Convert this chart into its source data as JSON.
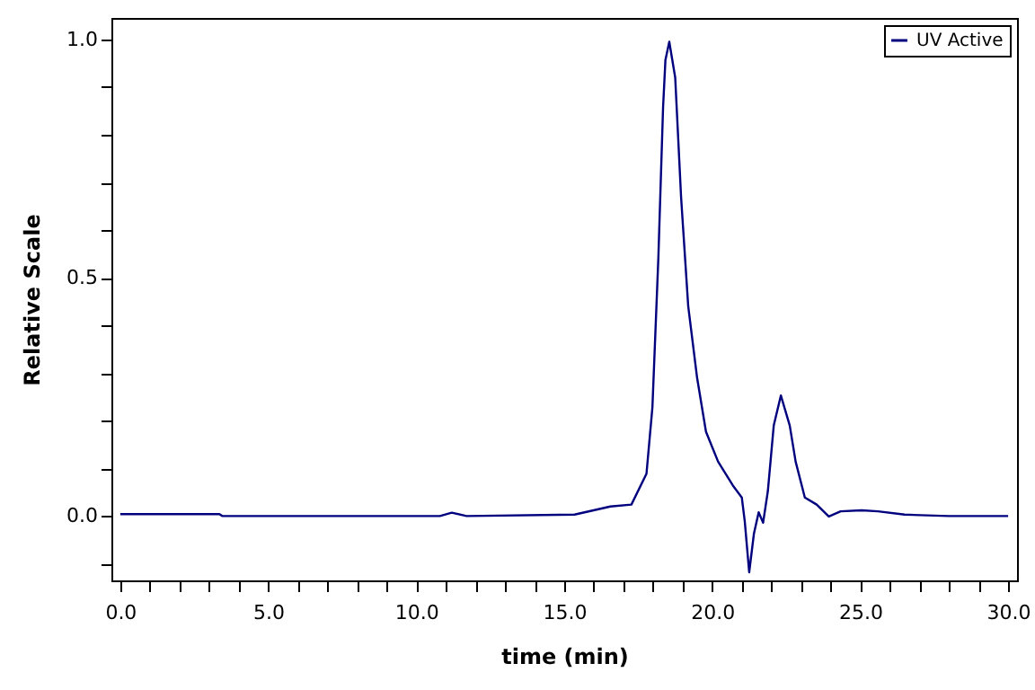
{
  "chart_data": {
    "type": "line",
    "xlabel": "time (min)",
    "ylabel": "Relative Scale",
    "legend": "top right",
    "xlim": [
      -0.3,
      30.3
    ],
    "ylim": [
      -0.135,
      1.045
    ],
    "xticks": [
      {
        "value": 0,
        "label": "0.0"
      },
      {
        "value": 1,
        "label": null
      },
      {
        "value": 2,
        "label": null
      },
      {
        "value": 3,
        "label": null
      },
      {
        "value": 4,
        "label": null
      },
      {
        "value": 5,
        "label": "5.0"
      },
      {
        "value": 6,
        "label": null
      },
      {
        "value": 7,
        "label": null
      },
      {
        "value": 8,
        "label": null
      },
      {
        "value": 9,
        "label": null
      },
      {
        "value": 10,
        "label": "10.0"
      },
      {
        "value": 11,
        "label": null
      },
      {
        "value": 12,
        "label": null
      },
      {
        "value": 13,
        "label": null
      },
      {
        "value": 14,
        "label": null
      },
      {
        "value": 15,
        "label": "15.0"
      },
      {
        "value": 16,
        "label": null
      },
      {
        "value": 17,
        "label": null
      },
      {
        "value": 18,
        "label": null
      },
      {
        "value": 19,
        "label": null
      },
      {
        "value": 20,
        "label": "20.0"
      },
      {
        "value": 21,
        "label": null
      },
      {
        "value": 22,
        "label": null
      },
      {
        "value": 23,
        "label": null
      },
      {
        "value": 24,
        "label": null
      },
      {
        "value": 25,
        "label": "25.0"
      },
      {
        "value": 26,
        "label": null
      },
      {
        "value": 27,
        "label": null
      },
      {
        "value": 28,
        "label": null
      },
      {
        "value": 29,
        "label": null
      },
      {
        "value": 30,
        "label": "30.0"
      }
    ],
    "yticks": [
      {
        "value": -0.1,
        "label": null
      },
      {
        "value": 0,
        "label": "0.0"
      },
      {
        "value": 0.1,
        "label": null
      },
      {
        "value": 0.2,
        "label": null
      },
      {
        "value": 0.3,
        "label": null
      },
      {
        "value": 0.4,
        "label": null
      },
      {
        "value": 0.5,
        "label": "0.5"
      },
      {
        "value": 0.6,
        "label": null
      },
      {
        "value": 0.7,
        "label": null
      },
      {
        "value": 0.8,
        "label": null
      },
      {
        "value": 0.9,
        "label": null
      },
      {
        "value": 1,
        "label": "1.0"
      }
    ],
    "x": [
      0,
      3.35,
      3.45,
      10.8,
      11.2,
      11.7,
      15.35,
      16.56,
      17.27,
      17.78,
      17.98,
      18.18,
      18.34,
      18.42,
      18.55,
      18.75,
      18.95,
      19.19,
      19.49,
      19.79,
      20.2,
      20.7,
      21.0,
      21.1,
      21.25,
      21.41,
      21.57,
      21.72,
      21.88,
      22.08,
      22.32,
      22.62,
      22.82,
      23.13,
      23.53,
      23.94,
      24.34,
      25.05,
      25.6,
      26.5,
      28,
      30
    ],
    "series": [
      {
        "name": "UV Active",
        "color": "#00007f",
        "values": [
          0.004,
          0.004,
          0,
          0,
          0.007,
          0,
          0.003,
          0.02,
          0.024,
          0.089,
          0.228,
          0.54,
          0.857,
          0.957,
          0.995,
          0.92,
          0.668,
          0.44,
          0.29,
          0.177,
          0.114,
          0.064,
          0.039,
          -0.011,
          -0.118,
          -0.037,
          0.008,
          -0.014,
          0.052,
          0.19,
          0.253,
          0.19,
          0.114,
          0.039,
          0.024,
          -0.001,
          0.01,
          0.012,
          0.01,
          0.003,
          0,
          0
        ]
      }
    ]
  }
}
